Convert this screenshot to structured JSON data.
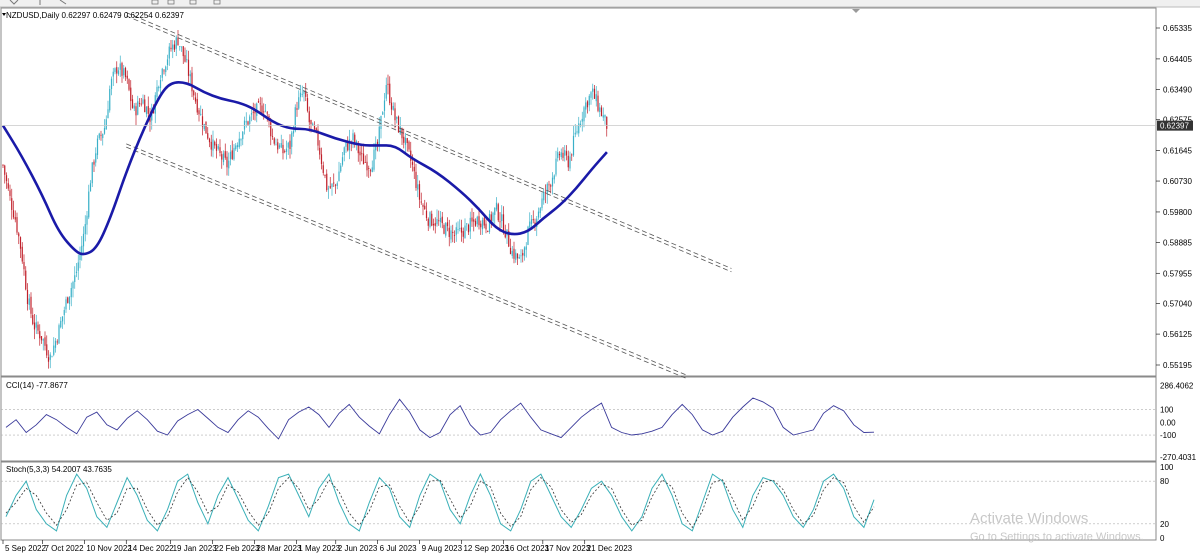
{
  "window": {
    "legend_main": "NZDUSD,Daily  0.62297 0.62479 0.62254 0.62397",
    "current_price_label": "0.62397",
    "watermark_title": "Activate Windows",
    "watermark_sub": "Go to Settings to activate Windows."
  },
  "chart_data": [
    {
      "type": "candlestick",
      "title": "NZDUSD,Daily",
      "ohlc_header": [
        "0.62297",
        "0.62479",
        "0.62254",
        "0.62397"
      ],
      "ylim": [
        0.5474,
        0.6585
      ],
      "yticks": [
        "0.65335",
        "0.64405",
        "0.63490",
        "0.62575",
        "0.61645",
        "0.60730",
        "0.59800",
        "0.58885",
        "0.57955",
        "0.57040",
        "0.56125",
        "0.55195"
      ],
      "xticks": [
        "5 Sep 2022",
        "7 Oct 2022",
        "10 Nov 2022",
        "14 Dec 2022",
        "19 Jan 2023",
        "22 Feb 2023",
        "28 Mar 2023",
        "1 May 2023",
        "2 Jun 2023",
        "6 Jul 2023",
        "9 Aug 2023",
        "12 Sep 2023",
        "16 Oct 2023",
        "17 Nov 2023",
        "21 Dec 2023"
      ],
      "current_price": 0.62397,
      "bull_color": "#3ab0c8",
      "bear_color": "#c0202a",
      "ma_color": "#1a1aa8",
      "price_path": [
        [
          "5 Sep 2022",
          0.612
        ],
        [
          "10 Sep 2022",
          0.603
        ],
        [
          "15 Sep 2022",
          0.596
        ],
        [
          "20 Sep 2022",
          0.586
        ],
        [
          "25 Sep 2022",
          0.572
        ],
        [
          "30 Sep 2022",
          0.564
        ],
        [
          "7 Oct 2022",
          0.56
        ],
        [
          "13 Oct 2022",
          0.554
        ],
        [
          "20 Oct 2022",
          0.562
        ],
        [
          "27 Oct 2022",
          0.572
        ],
        [
          "3 Nov 2022",
          0.579
        ],
        [
          "10 Nov 2022",
          0.592
        ],
        [
          "15 Nov 2022",
          0.608
        ],
        [
          "20 Nov 2022",
          0.618
        ],
        [
          "27 Nov 2022",
          0.624
        ],
        [
          "1 Dec 2022",
          0.636
        ],
        [
          "7 Dec 2022",
          0.642
        ],
        [
          "14 Dec 2022",
          0.638
        ],
        [
          "20 Dec 2022",
          0.628
        ],
        [
          "27 Dec 2022",
          0.632
        ],
        [
          "3 Jan 2023",
          0.626
        ],
        [
          "10 Jan 2023",
          0.639
        ],
        [
          "19 Jan 2023",
          0.647
        ],
        [
          "25 Jan 2023",
          0.65
        ],
        [
          "1 Feb 2023",
          0.642
        ],
        [
          "8 Feb 2023",
          0.632
        ],
        [
          "15 Feb 2023",
          0.624
        ],
        [
          "22 Feb 2023",
          0.618
        ],
        [
          "28 Feb 2023",
          0.615
        ],
        [
          "6 Mar 2023",
          0.612
        ],
        [
          "12 Mar 2023",
          0.618
        ],
        [
          "20 Mar 2023",
          0.624
        ],
        [
          "28 Mar 2023",
          0.628
        ],
        [
          "5 Apr 2023",
          0.63
        ],
        [
          "12 Apr 2023",
          0.62
        ],
        [
          "20 Apr 2023",
          0.616
        ],
        [
          "26 Apr 2023",
          0.618
        ],
        [
          "1 May 2023",
          0.63
        ],
        [
          "7 May 2023",
          0.634
        ],
        [
          "12 May 2023",
          0.624
        ],
        [
          "18 May 2023",
          0.62
        ],
        [
          "26 May 2023",
          0.605
        ],
        [
          "2 Jun 2023",
          0.606
        ],
        [
          "9 Jun 2023",
          0.617
        ],
        [
          "16 Jun 2023",
          0.62
        ],
        [
          "23 Jun 2023",
          0.614
        ],
        [
          "30 Jun 2023",
          0.612
        ],
        [
          "6 Jul 2023",
          0.618
        ],
        [
          "13 Jul 2023",
          0.637
        ],
        [
          "20 Jul 2023",
          0.626
        ],
        [
          "27 Jul 2023",
          0.62
        ],
        [
          "3 Aug 2023",
          0.612
        ],
        [
          "9 Aug 2023",
          0.602
        ],
        [
          "16 Aug 2023",
          0.596
        ],
        [
          "23 Aug 2023",
          0.595
        ],
        [
          "30 Aug 2023",
          0.593
        ],
        [
          "6 Sep 2023",
          0.591
        ],
        [
          "12 Sep 2023",
          0.592
        ],
        [
          "19 Sep 2023",
          0.594
        ],
        [
          "26 Sep 2023",
          0.596
        ],
        [
          "3 Oct 2023",
          0.594
        ],
        [
          "10 Oct 2023",
          0.599
        ],
        [
          "16 Oct 2023",
          0.594
        ],
        [
          "23 Oct 2023",
          0.586
        ],
        [
          "30 Oct 2023",
          0.583
        ],
        [
          "5 Nov 2023",
          0.592
        ],
        [
          "11 Nov 2023",
          0.596
        ],
        [
          "17 Nov 2023",
          0.602
        ],
        [
          "24 Nov 2023",
          0.608
        ],
        [
          "1 Dec 2023",
          0.616
        ],
        [
          "8 Dec 2023",
          0.613
        ],
        [
          "14 Dec 2023",
          0.622
        ],
        [
          "21 Dec 2023",
          0.63
        ],
        [
          "27 Dec 2023",
          0.634
        ],
        [
          "2 Jan 2024",
          0.629
        ],
        [
          "8 Jan 2024",
          0.624
        ]
      ],
      "moving_average": [
        [
          "5 Sep 2022",
          0.624
        ],
        [
          "20 Sep 2022",
          0.615
        ],
        [
          "7 Oct 2022",
          0.603
        ],
        [
          "20 Oct 2022",
          0.592
        ],
        [
          "3 Nov 2022",
          0.586
        ],
        [
          "10 Nov 2022",
          0.585
        ],
        [
          "20 Nov 2022",
          0.587
        ],
        [
          "1 Dec 2022",
          0.596
        ],
        [
          "14 Dec 2022",
          0.61
        ],
        [
          "27 Dec 2022",
          0.622
        ],
        [
          "10 Jan 2023",
          0.633
        ],
        [
          "19 Jan 2023",
          0.637
        ],
        [
          "1 Feb 2023",
          0.637
        ],
        [
          "15 Feb 2023",
          0.634
        ],
        [
          "1 Mar 2023",
          0.632
        ],
        [
          "15 Mar 2023",
          0.631
        ],
        [
          "28 Mar 2023",
          0.629
        ],
        [
          "12 Apr 2023",
          0.625
        ],
        [
          "26 Apr 2023",
          0.623
        ],
        [
          "12 May 2023",
          0.623
        ],
        [
          "2 Jun 2023",
          0.62
        ],
        [
          "23 Jun 2023",
          0.618
        ],
        [
          "6 Jul 2023",
          0.618
        ],
        [
          "20 Jul 2023",
          0.618
        ],
        [
          "3 Aug 2023",
          0.614
        ],
        [
          "23 Aug 2023",
          0.61
        ],
        [
          "12 Sep 2023",
          0.604
        ],
        [
          "26 Sep 2023",
          0.599
        ],
        [
          "10 Oct 2023",
          0.593
        ],
        [
          "23 Oct 2023",
          0.591
        ],
        [
          "5 Nov 2023",
          0.592
        ],
        [
          "17 Nov 2023",
          0.596
        ],
        [
          "1 Dec 2023",
          0.6
        ],
        [
          "14 Dec 2023",
          0.605
        ],
        [
          "27 Dec 2023",
          0.611
        ],
        [
          "8 Jan 2024",
          0.616
        ]
      ],
      "channels": [
        {
          "from": [
            "14 Dec 2022",
            0.658
          ],
          "to": [
            "18 Apr 2024",
            0.581
          ]
        },
        {
          "from": [
            "14 Dec 2022",
            0.657
          ],
          "to": [
            "18 Apr 2024",
            0.58
          ]
        },
        {
          "from": [
            "14 Dec 2022",
            0.6185
          ],
          "to": [
            "12 Mar 2024",
            0.549
          ]
        },
        {
          "from": [
            "14 Dec 2022",
            0.6175
          ],
          "to": [
            "12 Mar 2024",
            0.548
          ]
        }
      ]
    },
    {
      "type": "line",
      "title": "CCI(14) -77.8677",
      "ylim": [
        -280,
        300
      ],
      "yticks": [
        "286.4062",
        "100",
        "0.00",
        "-100",
        "-270.4031"
      ],
      "levels": [
        100,
        -100
      ],
      "series_color": "#3a3a9a",
      "values": [
        -40,
        20,
        -80,
        -20,
        60,
        20,
        -40,
        -90,
        40,
        80,
        -20,
        -60,
        30,
        90,
        20,
        -70,
        -100,
        10,
        60,
        100,
        30,
        -40,
        -80,
        20,
        90,
        40,
        -50,
        -130,
        20,
        80,
        120,
        60,
        -40,
        70,
        140,
        40,
        -30,
        -90,
        60,
        180,
        80,
        -60,
        -120,
        -80,
        60,
        130,
        -20,
        -100,
        -80,
        20,
        90,
        150,
        40,
        -60,
        -90,
        -120,
        -40,
        40,
        100,
        150,
        -40,
        -80,
        -100,
        -90,
        -70,
        -40,
        60,
        140,
        60,
        -60,
        -100,
        -70,
        40,
        120,
        190,
        160,
        110,
        -40,
        -100,
        -80,
        -60,
        70,
        130,
        90,
        -20,
        -80,
        -78
      ]
    },
    {
      "type": "line",
      "title": "Stoch(5,3,3) 54.2007 43.7635",
      "ylim": [
        0,
        100
      ],
      "yticks": [
        "100",
        "80",
        "20",
        "0"
      ],
      "levels": [
        80,
        20
      ],
      "main_color": "#3ab0b8",
      "signal_color": "#333333",
      "values": [
        30,
        60,
        80,
        40,
        20,
        10,
        60,
        90,
        70,
        30,
        15,
        50,
        85,
        60,
        25,
        10,
        40,
        80,
        90,
        50,
        20,
        60,
        85,
        55,
        25,
        10,
        45,
        85,
        90,
        60,
        30,
        70,
        90,
        50,
        20,
        10,
        50,
        85,
        70,
        30,
        15,
        60,
        90,
        80,
        40,
        20,
        60,
        90,
        60,
        20,
        10,
        40,
        80,
        90,
        60,
        30,
        15,
        40,
        70,
        80,
        60,
        30,
        10,
        30,
        70,
        90,
        60,
        20,
        10,
        50,
        90,
        80,
        40,
        15,
        60,
        85,
        80,
        60,
        30,
        15,
        40,
        80,
        90,
        70,
        30,
        15,
        54
      ],
      "signal": [
        35,
        50,
        70,
        60,
        35,
        18,
        40,
        75,
        78,
        50,
        25,
        35,
        70,
        70,
        40,
        18,
        30,
        65,
        85,
        65,
        35,
        45,
        75,
        65,
        38,
        18,
        35,
        70,
        85,
        70,
        40,
        55,
        82,
        65,
        35,
        18,
        38,
        72,
        75,
        45,
        22,
        45,
        80,
        82,
        55,
        28,
        45,
        80,
        72,
        35,
        16,
        30,
        68,
        85,
        72,
        40,
        22,
        33,
        60,
        76,
        70,
        40,
        18,
        25,
        58,
        82,
        72,
        35,
        15,
        38,
        78,
        82,
        55,
        25,
        45,
        78,
        82,
        68,
        40,
        20,
        32,
        68,
        85,
        78,
        45,
        22,
        44
      ]
    }
  ]
}
